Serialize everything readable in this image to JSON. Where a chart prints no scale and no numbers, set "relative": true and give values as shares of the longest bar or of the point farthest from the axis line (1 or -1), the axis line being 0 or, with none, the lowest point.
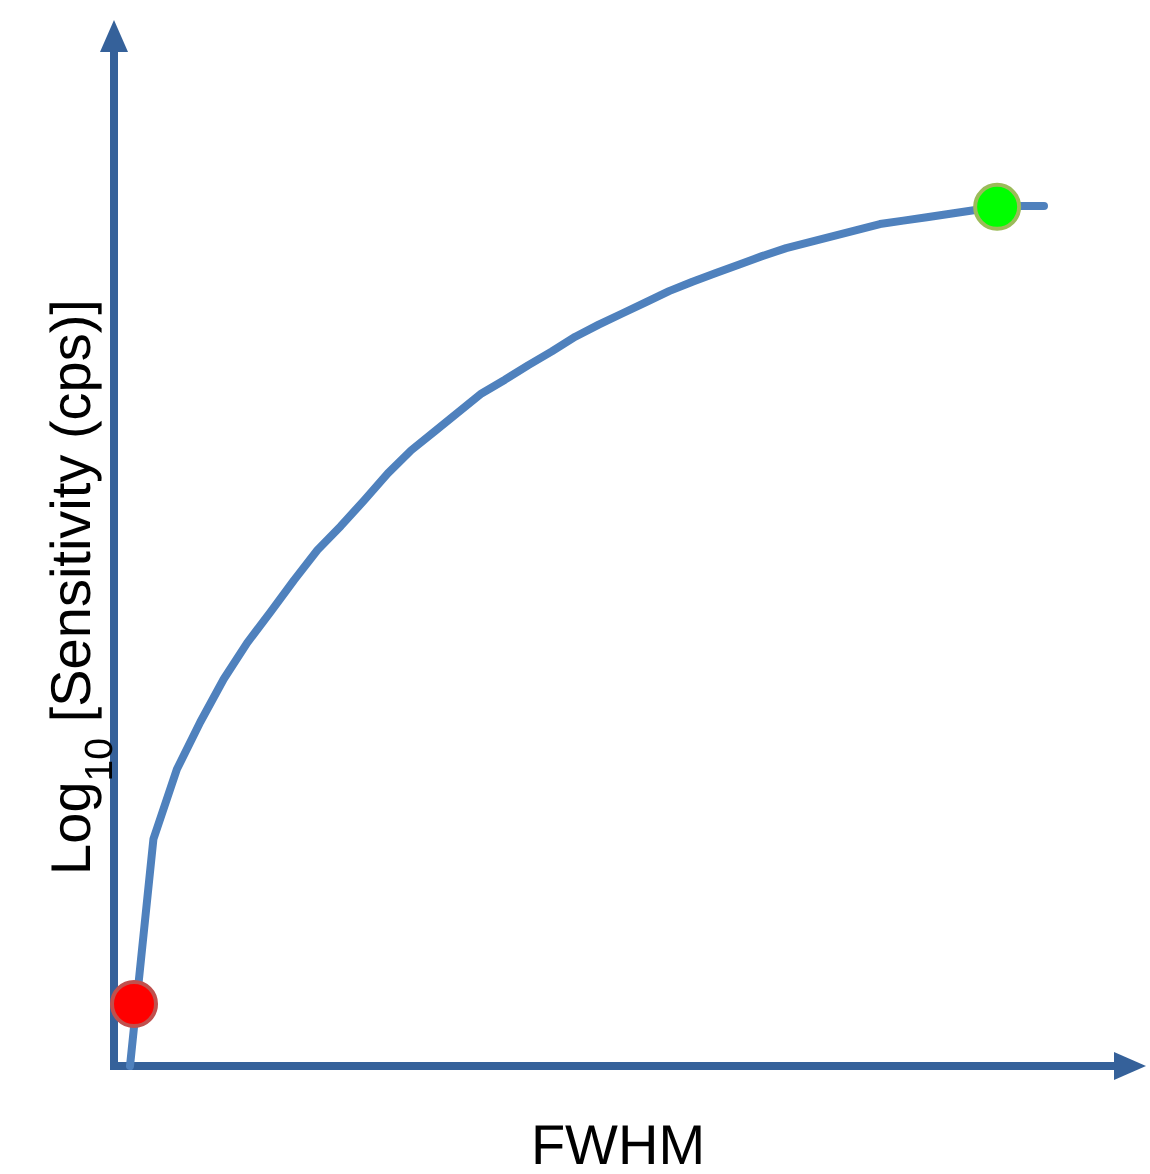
{
  "chart_data": {
    "type": "line",
    "relative": true,
    "xlabel": "FWHM",
    "ylabel": "Log$_{10}$ [Sensitivity (cps)]",
    "categories": [
      null,
      null,
      null,
      null,
      null,
      null,
      null,
      null,
      null,
      null,
      null,
      null,
      null,
      null,
      null,
      null,
      null,
      null,
      null,
      null,
      null,
      null,
      null,
      null,
      null,
      null,
      null,
      null,
      null,
      null,
      null,
      null,
      null,
      null,
      null,
      null,
      null,
      null,
      null,
      null
    ],
    "series": [
      {
        "color": "#4f81bd",
        "line_style": "solid",
        "values": [
          0,
          0.264,
          0.345,
          0.4,
          0.45,
          0.492,
          0.528,
          0.565,
          0.6,
          0.628,
          0.658,
          0.689,
          0.716,
          0.738,
          0.76,
          0.782,
          0.798,
          0.815,
          0.831,
          0.848,
          0.862,
          0.875,
          0.888,
          0.901,
          0.912,
          0.922,
          0.932,
          0.942,
          0.951,
          0.958,
          0.965,
          0.972,
          0.979,
          0.983,
          0.987,
          0.991,
          0.995,
          0.999,
          1,
          1
        ]
      }
    ]
  }
}
